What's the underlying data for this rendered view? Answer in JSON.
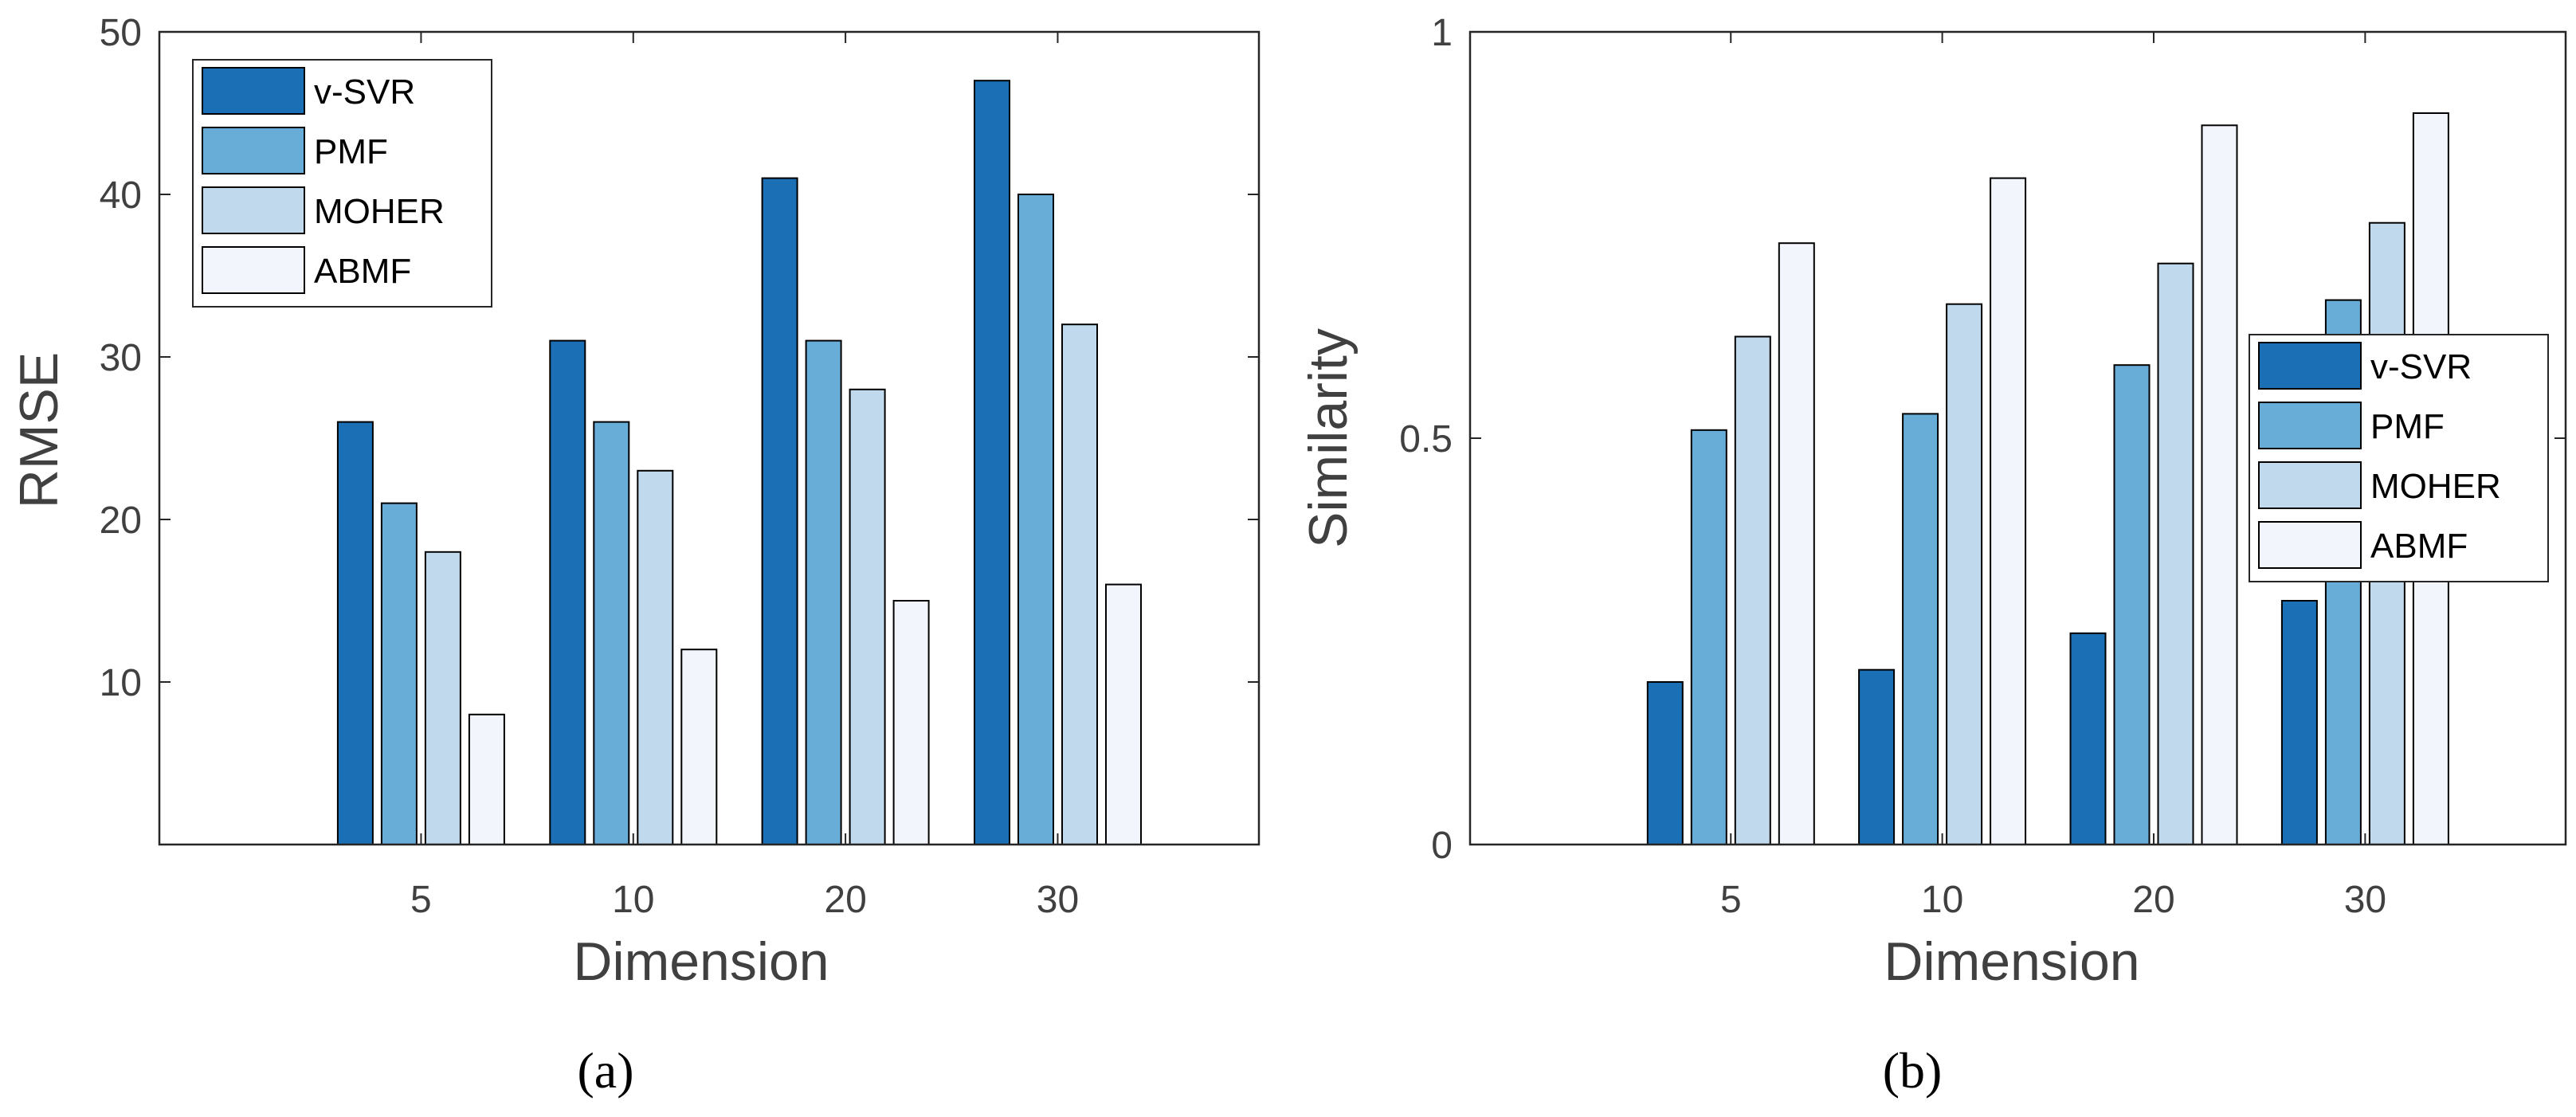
{
  "colors": {
    "series": [
      "#1a6fb5",
      "#68acd8",
      "#c0d9ec",
      "#f2f6fc"
    ],
    "axis": "#262626",
    "text": "#404040",
    "bar_edge": "#000000"
  },
  "chart_data": [
    {
      "type": "bar",
      "panel": "a",
      "caption": "(a)",
      "title": "",
      "xlabel": "Dimension",
      "ylabel": "RMSE",
      "categories": [
        "5",
        "10",
        "20",
        "30"
      ],
      "ylim": [
        0,
        50
      ],
      "yticks": [
        10,
        20,
        30,
        40,
        50
      ],
      "ytick_labels": [
        "10",
        "20",
        "30",
        "40",
        "50"
      ],
      "legend_position": "top-left",
      "series": [
        {
          "name": "v-SVR",
          "values": [
            26,
            31,
            41,
            47
          ]
        },
        {
          "name": "PMF",
          "values": [
            21,
            26,
            31,
            40
          ]
        },
        {
          "name": "MOHER",
          "values": [
            18,
            23,
            28,
            32
          ]
        },
        {
          "name": "ABMF",
          "values": [
            8,
            12,
            15,
            16
          ]
        }
      ]
    },
    {
      "type": "bar",
      "panel": "b",
      "caption": "(b)",
      "title": "",
      "xlabel": "Dimension",
      "ylabel": "Similarity",
      "categories": [
        "5",
        "10",
        "20",
        "30"
      ],
      "ylim": [
        0,
        1
      ],
      "yticks": [
        0,
        0.5,
        1
      ],
      "ytick_labels": [
        "0",
        "0.5",
        "1"
      ],
      "legend_position": "right",
      "series": [
        {
          "name": "v-SVR",
          "values": [
            0.2,
            0.215,
            0.26,
            0.3
          ]
        },
        {
          "name": "PMF",
          "values": [
            0.51,
            0.53,
            0.59,
            0.67
          ]
        },
        {
          "name": "MOHER",
          "values": [
            0.625,
            0.665,
            0.715,
            0.765
          ]
        },
        {
          "name": "ABMF",
          "values": [
            0.74,
            0.82,
            0.885,
            0.9
          ]
        }
      ]
    }
  ]
}
